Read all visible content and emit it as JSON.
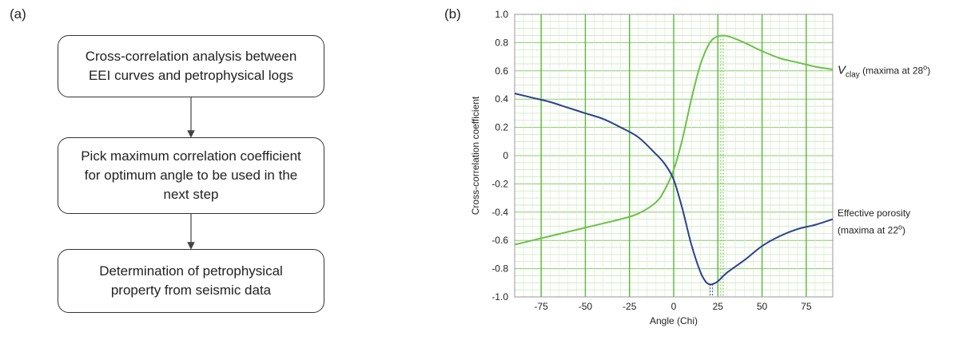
{
  "panel_a": {
    "label": "(a)",
    "boxes": [
      {
        "lines": [
          "Cross-correlation analysis between",
          "EEI curves and petrophysical logs"
        ]
      },
      {
        "lines": [
          "Pick maximum correlation coefficient",
          "for optimum angle to be used in the",
          "next step"
        ]
      },
      {
        "lines": [
          "Determination of petrophysical",
          "property from seismic data"
        ]
      }
    ]
  },
  "panel_b": {
    "label": "(b)"
  },
  "chart_data": {
    "type": "line",
    "xlabel": "Angle (Chi)",
    "ylabel": "Cross-correlation coefficient",
    "xlim": [
      -90,
      90
    ],
    "ylim": [
      -1.0,
      1.0
    ],
    "xticks": [
      -75,
      -50,
      -25,
      0,
      25,
      50,
      75
    ],
    "xtick_labels": [
      "-75",
      "-50",
      "-25",
      "0",
      "25",
      "50",
      "75"
    ],
    "yticks": [
      1.0,
      0.8,
      0.6,
      0.4,
      0.2,
      0,
      -0.2,
      -0.4,
      -0.6,
      -0.8,
      -1.0
    ],
    "ytick_labels": [
      "1.0",
      "0.8",
      "0.6",
      "0.4",
      "0.2",
      "0",
      "-0.2",
      "-0.4",
      "-0.6",
      "-0.8",
      "-1.0"
    ],
    "grid": true,
    "series": [
      {
        "color": "#6cc04a",
        "label_main": "V",
        "label_sub": "clay",
        "label_rest": " (maxima at 28",
        "label_sup": "o",
        "label_end": ")",
        "x": [
          -90,
          -80,
          -70,
          -60,
          -50,
          -40,
          -30,
          -20,
          -10,
          -5,
          0,
          5,
          10,
          15,
          20,
          24,
          28,
          32,
          40,
          50,
          60,
          70,
          80,
          90
        ],
        "y": [
          -0.63,
          -0.6,
          -0.57,
          -0.54,
          -0.51,
          -0.48,
          -0.45,
          -0.41,
          -0.33,
          -0.24,
          -0.1,
          0.12,
          0.4,
          0.64,
          0.79,
          0.84,
          0.85,
          0.84,
          0.8,
          0.74,
          0.69,
          0.66,
          0.63,
          0.61
        ],
        "marker_x": 28
      },
      {
        "color": "#2e3f8f",
        "label_lines": [
          "Effective porosity"
        ],
        "label_line2_rest": "(maxima at 22",
        "label_sup": "o",
        "label_end": ")",
        "x": [
          -90,
          -80,
          -70,
          -60,
          -50,
          -40,
          -30,
          -20,
          -10,
          -5,
          0,
          5,
          10,
          15,
          18,
          20,
          22,
          25,
          30,
          40,
          50,
          60,
          70,
          80,
          90
        ],
        "y": [
          0.44,
          0.41,
          0.38,
          0.34,
          0.3,
          0.26,
          0.2,
          0.13,
          0.01,
          -0.06,
          -0.17,
          -0.38,
          -0.63,
          -0.82,
          -0.89,
          -0.91,
          -0.91,
          -0.89,
          -0.83,
          -0.74,
          -0.64,
          -0.57,
          -0.52,
          -0.49,
          -0.45
        ],
        "marker_x": 22
      }
    ]
  }
}
